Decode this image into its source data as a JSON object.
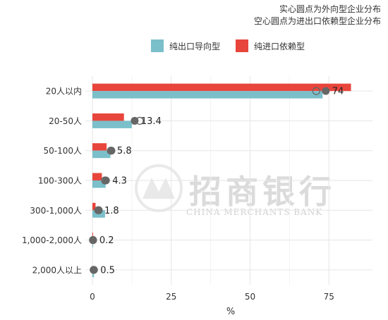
{
  "notes": {
    "line1": "实心圆点为外向型企业分布",
    "line2": "空心圆点为进出口依赖型企业分布"
  },
  "watermark": {
    "cn": "招商银行",
    "en": "CHINA MERCHANTS BANK"
  },
  "colors": {
    "export_only": "#7ABFCA",
    "import_only": "#E8453C",
    "dot_solid": "#666666",
    "grid": "#E6E6E6"
  },
  "chart_data": {
    "type": "bar",
    "orientation": "horizontal",
    "categories": [
      "20人以内",
      "20-50人",
      "50-100人",
      "100-300人",
      "300-1,000人",
      "1,000-2,000人",
      "2,000人以上"
    ],
    "series": [
      {
        "name": "纯出口导向型",
        "color": "#7ABFCA",
        "values": [
          73,
          12.5,
          5.7,
          4.2,
          4.0,
          0.1,
          0.5
        ]
      },
      {
        "name": "纯进口依赖型",
        "color": "#E8453C",
        "values": [
          82,
          10,
          4.5,
          3,
          1,
          0.2,
          0
        ]
      }
    ],
    "solid_dots": {
      "description_label": "外向型",
      "values": [
        74,
        13.4,
        5.8,
        4.3,
        1.8,
        0.2,
        0.5
      ],
      "labels": [
        "74",
        "13.4",
        "5.8",
        "4.3",
        "1.8",
        "0.2",
        "0.5"
      ]
    },
    "hollow_dots": {
      "values": [
        71,
        15,
        6,
        4,
        2,
        0.2,
        0.4
      ]
    },
    "xlabel": "%",
    "ylabel": "",
    "xlim": [
      0,
      90
    ],
    "xticks": [
      0,
      25,
      50,
      75
    ],
    "grid": true,
    "legend_position": "top"
  }
}
